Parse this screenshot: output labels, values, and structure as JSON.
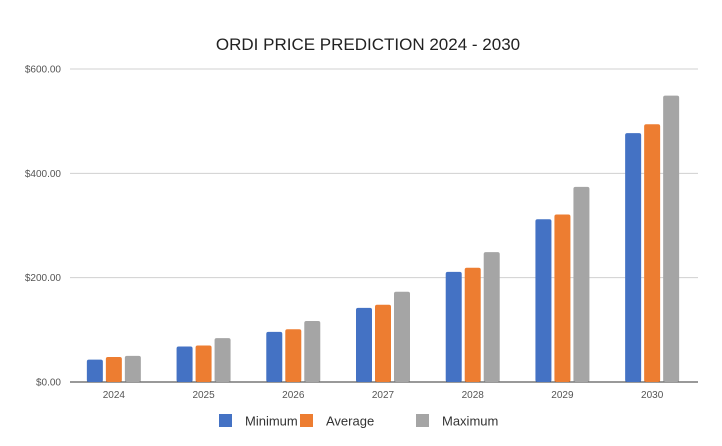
{
  "chart_data": {
    "type": "bar",
    "title": "ORDI PRICE PREDICTION 2024  - 2030",
    "xlabel": "",
    "ylabel": "",
    "categories": [
      "2024",
      "2025",
      "2026",
      "2027",
      "2028",
      "2029",
      "2030"
    ],
    "series": [
      {
        "name": "Minimum",
        "color": "#4472c4",
        "values": [
          43,
          68,
          96,
          142,
          211,
          312,
          477
        ]
      },
      {
        "name": "Average",
        "color": "#ed7d31",
        "values": [
          48,
          70,
          101,
          148,
          219,
          321,
          494
        ]
      },
      {
        "name": "Maximum",
        "color": "#a5a5a5",
        "values": [
          50,
          84,
          117,
          173,
          249,
          374,
          549
        ]
      }
    ],
    "ylim": [
      0,
      600
    ],
    "yticks": [
      0,
      200,
      400,
      600
    ],
    "ytick_labels": [
      "$0.00",
      "$200.00",
      "$400.00",
      "$600.00"
    ],
    "grid": true,
    "legend_position": "bottom"
  }
}
